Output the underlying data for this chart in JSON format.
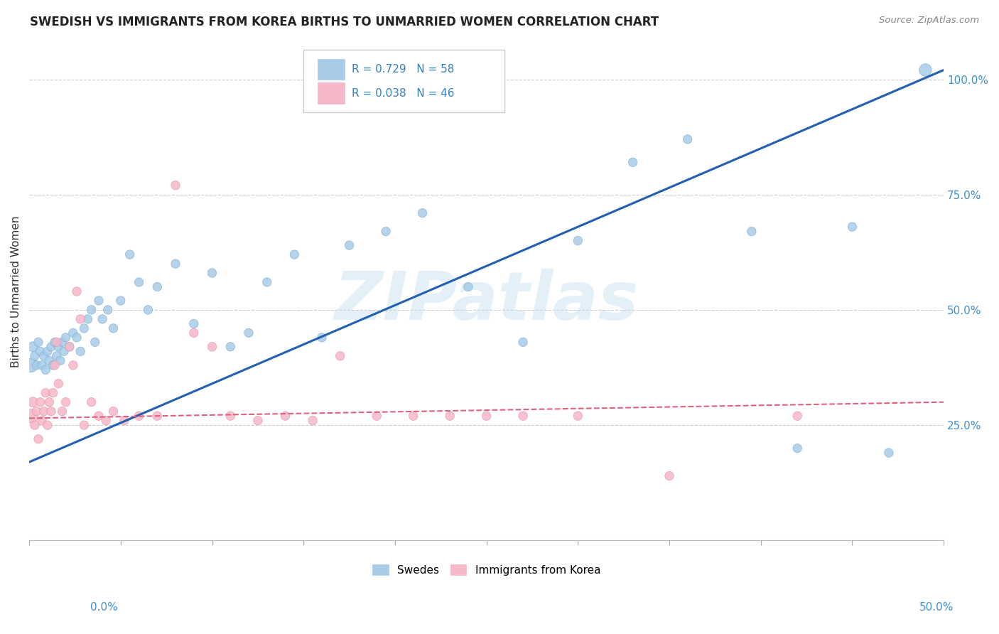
{
  "title": "SWEDISH VS IMMIGRANTS FROM KOREA BIRTHS TO UNMARRIED WOMEN CORRELATION CHART",
  "source": "Source: ZipAtlas.com",
  "ylabel": "Births to Unmarried Women",
  "yticks": [
    0.25,
    0.5,
    0.75,
    1.0
  ],
  "ytick_labels": [
    "25.0%",
    "50.0%",
    "75.0%",
    "100.0%"
  ],
  "x_min": 0.0,
  "x_max": 0.5,
  "y_min": 0.0,
  "y_max": 1.08,
  "blue_color": "#a8cce8",
  "pink_color": "#f5b8c8",
  "blue_edge_color": "#7aafd4",
  "pink_edge_color": "#e890aa",
  "blue_line_color": "#2060b0",
  "pink_line_color": "#e06080",
  "legend_R_blue": "R = 0.729",
  "legend_N_blue": "N = 58",
  "legend_R_pink": "R = 0.038",
  "legend_N_pink": "N = 46",
  "watermark": "ZIPatlas",
  "blue_line_y0": 0.17,
  "blue_line_y1": 1.02,
  "pink_line_y0": 0.265,
  "pink_line_y1": 0.3,
  "blue_scatter_x": [
    0.001,
    0.002,
    0.003,
    0.004,
    0.005,
    0.006,
    0.007,
    0.008,
    0.009,
    0.01,
    0.011,
    0.012,
    0.013,
    0.014,
    0.015,
    0.016,
    0.017,
    0.018,
    0.019,
    0.02,
    0.022,
    0.024,
    0.026,
    0.028,
    0.03,
    0.032,
    0.034,
    0.036,
    0.038,
    0.04,
    0.043,
    0.046,
    0.05,
    0.055,
    0.06,
    0.065,
    0.07,
    0.08,
    0.09,
    0.1,
    0.11,
    0.12,
    0.13,
    0.145,
    0.16,
    0.175,
    0.195,
    0.215,
    0.24,
    0.27,
    0.3,
    0.33,
    0.36,
    0.395,
    0.42,
    0.45,
    0.47,
    0.49
  ],
  "blue_scatter_y": [
    0.38,
    0.42,
    0.4,
    0.38,
    0.43,
    0.41,
    0.38,
    0.4,
    0.37,
    0.41,
    0.39,
    0.42,
    0.38,
    0.43,
    0.4,
    0.42,
    0.39,
    0.43,
    0.41,
    0.44,
    0.42,
    0.45,
    0.44,
    0.41,
    0.46,
    0.48,
    0.5,
    0.43,
    0.52,
    0.48,
    0.5,
    0.46,
    0.52,
    0.62,
    0.56,
    0.5,
    0.55,
    0.6,
    0.47,
    0.58,
    0.42,
    0.45,
    0.56,
    0.62,
    0.44,
    0.64,
    0.67,
    0.71,
    0.55,
    0.43,
    0.65,
    0.82,
    0.87,
    0.67,
    0.2,
    0.68,
    0.19,
    1.02
  ],
  "blue_scatter_size": [
    200,
    100,
    80,
    80,
    80,
    80,
    80,
    80,
    80,
    80,
    80,
    80,
    80,
    80,
    80,
    80,
    80,
    80,
    80,
    80,
    80,
    80,
    80,
    80,
    80,
    80,
    80,
    80,
    80,
    80,
    80,
    80,
    80,
    80,
    80,
    80,
    80,
    80,
    80,
    80,
    80,
    80,
    80,
    80,
    80,
    80,
    80,
    80,
    80,
    80,
    80,
    80,
    80,
    80,
    80,
    80,
    80,
    160
  ],
  "pink_scatter_x": [
    0.001,
    0.002,
    0.003,
    0.004,
    0.005,
    0.006,
    0.007,
    0.008,
    0.009,
    0.01,
    0.011,
    0.012,
    0.013,
    0.014,
    0.015,
    0.016,
    0.018,
    0.02,
    0.022,
    0.024,
    0.026,
    0.028,
    0.03,
    0.034,
    0.038,
    0.042,
    0.046,
    0.052,
    0.06,
    0.07,
    0.08,
    0.09,
    0.1,
    0.11,
    0.125,
    0.14,
    0.155,
    0.17,
    0.19,
    0.21,
    0.23,
    0.25,
    0.27,
    0.3,
    0.35,
    0.42
  ],
  "pink_scatter_y": [
    0.27,
    0.3,
    0.25,
    0.28,
    0.22,
    0.3,
    0.26,
    0.28,
    0.32,
    0.25,
    0.3,
    0.28,
    0.32,
    0.38,
    0.43,
    0.34,
    0.28,
    0.3,
    0.42,
    0.38,
    0.54,
    0.48,
    0.25,
    0.3,
    0.27,
    0.26,
    0.28,
    0.26,
    0.27,
    0.27,
    0.77,
    0.45,
    0.42,
    0.27,
    0.26,
    0.27,
    0.26,
    0.4,
    0.27,
    0.27,
    0.27,
    0.27,
    0.27,
    0.27,
    0.14,
    0.27
  ],
  "pink_scatter_size": [
    200,
    100,
    80,
    80,
    80,
    80,
    80,
    80,
    80,
    80,
    80,
    80,
    80,
    80,
    80,
    80,
    80,
    80,
    80,
    80,
    80,
    80,
    80,
    80,
    80,
    80,
    80,
    80,
    80,
    80,
    80,
    80,
    80,
    80,
    80,
    80,
    80,
    80,
    80,
    80,
    80,
    80,
    80,
    80,
    80,
    80
  ]
}
